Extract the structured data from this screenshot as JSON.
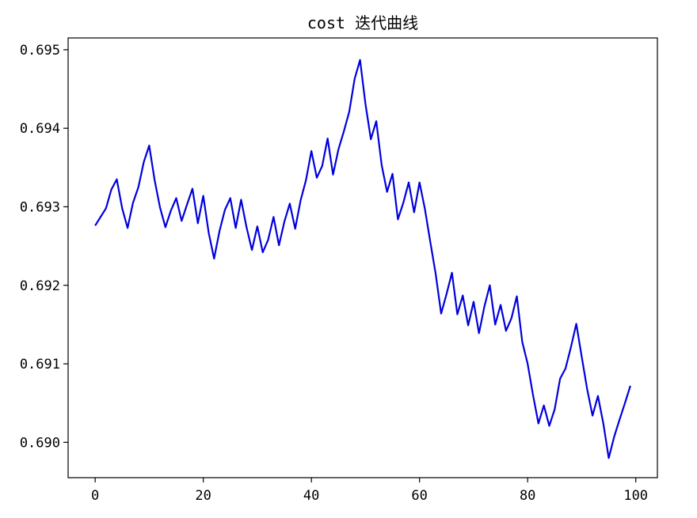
{
  "chart_data": {
    "type": "line",
    "title": "cost 迭代曲线",
    "xlabel": "",
    "ylabel": "",
    "xlim": [
      -5,
      104
    ],
    "ylim": [
      0.68955,
      0.69515
    ],
    "xticks": [
      0,
      20,
      40,
      60,
      80,
      100
    ],
    "yticks": [
      0.69,
      0.691,
      0.692,
      0.693,
      0.694,
      0.695
    ],
    "xtick_labels": [
      "0",
      "20",
      "40",
      "60",
      "80",
      "100"
    ],
    "ytick_labels": [
      "0.690",
      "0.691",
      "0.692",
      "0.693",
      "0.694",
      "0.695"
    ],
    "grid": false,
    "series": [
      {
        "color": "#0000dd",
        "x": [
          0,
          1,
          2,
          3,
          4,
          5,
          6,
          7,
          8,
          9,
          10,
          11,
          12,
          13,
          14,
          15,
          16,
          17,
          18,
          19,
          20,
          21,
          22,
          23,
          24,
          25,
          26,
          27,
          28,
          29,
          30,
          31,
          32,
          33,
          34,
          35,
          36,
          37,
          38,
          39,
          40,
          41,
          42,
          43,
          44,
          45,
          46,
          47,
          48,
          49,
          50,
          51,
          52,
          53,
          54,
          55,
          56,
          57,
          58,
          59,
          60,
          61,
          62,
          63,
          64,
          65,
          66,
          67,
          68,
          69,
          70,
          71,
          72,
          73,
          74,
          75,
          76,
          77,
          78,
          79,
          80,
          81,
          82,
          83,
          84,
          85,
          86,
          87,
          88,
          89,
          90,
          91,
          92,
          93,
          94,
          95,
          96,
          97,
          98,
          99
        ],
        "y": [
          0.69276,
          0.69287,
          0.69298,
          0.69322,
          0.69335,
          0.69298,
          0.69273,
          0.69305,
          0.69325,
          0.69357,
          0.69378,
          0.69334,
          0.69299,
          0.69274,
          0.69295,
          0.69311,
          0.69282,
          0.69303,
          0.69323,
          0.69279,
          0.69314,
          0.69267,
          0.69234,
          0.69269,
          0.69296,
          0.69311,
          0.69273,
          0.69309,
          0.69274,
          0.69245,
          0.69275,
          0.69242,
          0.69258,
          0.69287,
          0.69251,
          0.69281,
          0.69304,
          0.69272,
          0.69308,
          0.69334,
          0.69371,
          0.69337,
          0.69352,
          0.69387,
          0.69341,
          0.69373,
          0.69396,
          0.69421,
          0.69463,
          0.69487,
          0.69431,
          0.69386,
          0.69409,
          0.69353,
          0.69319,
          0.69342,
          0.69284,
          0.69305,
          0.69331,
          0.69293,
          0.69331,
          0.69297,
          0.69255,
          0.69214,
          0.69164,
          0.69189,
          0.69216,
          0.69163,
          0.69187,
          0.69149,
          0.69179,
          0.69139,
          0.69173,
          0.692,
          0.6915,
          0.69175,
          0.69142,
          0.69158,
          0.69186,
          0.69128,
          0.691,
          0.6906,
          0.69024,
          0.69047,
          0.69021,
          0.69042,
          0.69081,
          0.69094,
          0.69121,
          0.69151,
          0.69109,
          0.69068,
          0.69034,
          0.69059,
          0.69024,
          0.6898,
          0.69007,
          0.69029,
          0.6905,
          0.69072
        ]
      }
    ]
  }
}
